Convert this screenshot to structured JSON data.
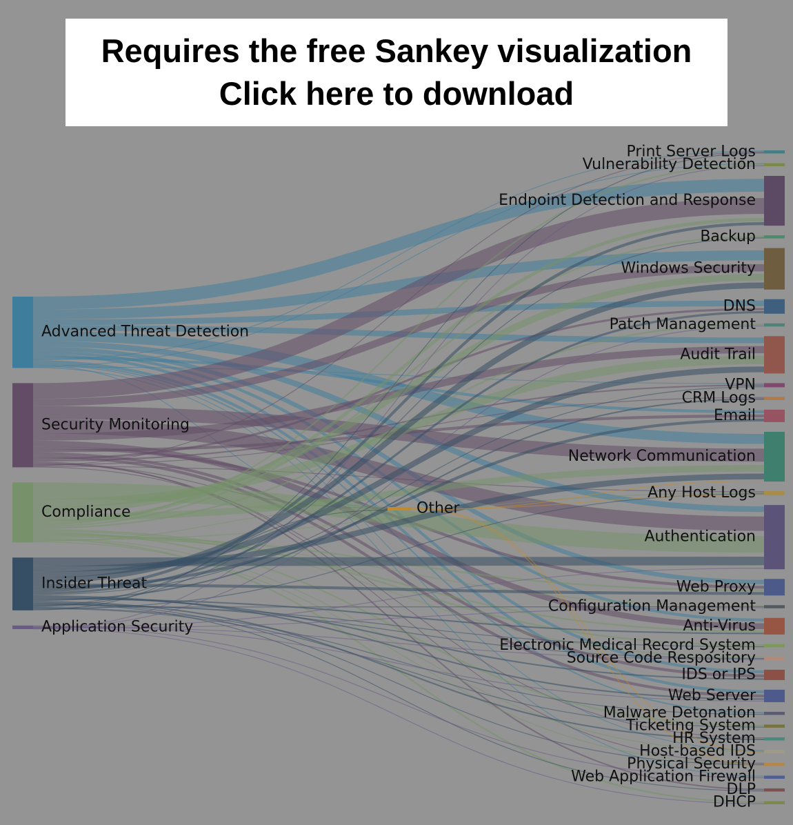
{
  "banner": {
    "line1": "Requires the free Sankey visualization",
    "line2": "Click here to download"
  },
  "chart_data": {
    "type": "sankey",
    "sources": [
      {
        "name": "Advanced Threat Detection",
        "color": "#3f7d9c",
        "value": 100
      },
      {
        "name": "Security Monitoring",
        "color": "#634c66",
        "value": 118
      },
      {
        "name": "Compliance",
        "color": "#77926a",
        "value": 84
      },
      {
        "name": "Insider Threat",
        "color": "#364f64",
        "value": 74
      },
      {
        "name": "Application Security",
        "color": "#6a5a86",
        "value": 5
      }
    ],
    "middle": [
      {
        "name": "Other",
        "color": "#c28a2e",
        "value": 4
      }
    ],
    "targets": [
      {
        "name": "Print Server Logs",
        "color": "#427f82",
        "value": 3
      },
      {
        "name": "Vulnerability Detection",
        "color": "#7b8c4a",
        "value": 3
      },
      {
        "name": "Endpoint Detection and Response",
        "color": "#5c4a64",
        "value": 48
      },
      {
        "name": "Backup",
        "color": "#4d8a6c",
        "value": 3
      },
      {
        "name": "Windows Security",
        "color": "#6e5d3e",
        "value": 40
      },
      {
        "name": "DNS",
        "color": "#3e5f7e",
        "value": 14
      },
      {
        "name": "Patch Management",
        "color": "#4f8377",
        "value": 3
      },
      {
        "name": "Audit Trail",
        "color": "#91574c",
        "value": 36
      },
      {
        "name": "VPN",
        "color": "#804a70",
        "value": 4
      },
      {
        "name": "CRM Logs",
        "color": "#b0794a",
        "value": 3
      },
      {
        "name": "Email",
        "color": "#975361",
        "value": 12
      },
      {
        "name": "Network Communication",
        "color": "#3f7f6e",
        "value": 48
      },
      {
        "name": "Any Host Logs",
        "color": "#a98c45",
        "value": 4
      },
      {
        "name": "Authentication",
        "color": "#5b5478",
        "value": 62
      },
      {
        "name": "Web Proxy",
        "color": "#4c5a8a",
        "value": 16
      },
      {
        "name": "Configuration Management",
        "color": "#4f5a61",
        "value": 3
      },
      {
        "name": "Anti-Virus",
        "color": "#975543",
        "value": 16
      },
      {
        "name": "Electronic Medical Record System",
        "color": "#7e9a58",
        "value": 3
      },
      {
        "name": "Source Code Respository",
        "color": "#b38a7a",
        "value": 3
      },
      {
        "name": "IDS or IPS",
        "color": "#8b5147",
        "value": 10
      },
      {
        "name": "Web Server",
        "color": "#4d5a8b",
        "value": 12
      },
      {
        "name": "Malware Detonation",
        "color": "#5a5a72",
        "value": 3
      },
      {
        "name": "Ticketing System",
        "color": "#76733e",
        "value": 3
      },
      {
        "name": "HR System",
        "color": "#4a8a7e",
        "value": 3
      },
      {
        "name": "Host-based IDS",
        "color": "#a09a84",
        "value": 3
      },
      {
        "name": "Physical Security",
        "color": "#b6874a",
        "value": 3
      },
      {
        "name": "Web Application Firewall",
        "color": "#4f5f96",
        "value": 3
      },
      {
        "name": "DLP",
        "color": "#7e4f50",
        "value": 3
      },
      {
        "name": "DHCP",
        "color": "#7b8a4c",
        "value": 3
      }
    ],
    "links": [
      {
        "source": "Advanced Threat Detection",
        "target": "Endpoint Detection and Response",
        "value": 18
      },
      {
        "source": "Advanced Threat Detection",
        "target": "Windows Security",
        "value": 14
      },
      {
        "source": "Advanced Threat Detection",
        "target": "DNS",
        "value": 8
      },
      {
        "source": "Advanced Threat Detection",
        "target": "Audit Trail",
        "value": 8
      },
      {
        "source": "Advanced Threat Detection",
        "target": "Network Communication",
        "value": 14
      },
      {
        "source": "Advanced Threat Detection",
        "target": "Authentication",
        "value": 8
      },
      {
        "source": "Advanced Threat Detection",
        "target": "Web Proxy",
        "value": 6
      },
      {
        "source": "Advanced Threat Detection",
        "target": "Anti-Virus",
        "value": 4
      },
      {
        "source": "Advanced Threat Detection",
        "target": "IDS or IPS",
        "value": 4
      },
      {
        "source": "Advanced Threat Detection",
        "target": "Email",
        "value": 4
      },
      {
        "source": "Advanced Threat Detection",
        "target": "Print Server Logs",
        "value": 1
      },
      {
        "source": "Advanced Threat Detection",
        "target": "Web Server",
        "value": 4
      },
      {
        "source": "Advanced Threat Detection",
        "target": "Malware Detonation",
        "value": 2
      },
      {
        "source": "Advanced Threat Detection",
        "target": "Host-based IDS",
        "value": 1
      },
      {
        "source": "Advanced Threat Detection",
        "target": "Other",
        "value": 1
      },
      {
        "source": "Advanced Threat Detection",
        "target": "Vulnerability Detection",
        "value": 1
      },
      {
        "source": "Advanced Threat Detection",
        "target": "VPN",
        "value": 1
      },
      {
        "source": "Advanced Threat Detection",
        "target": "Web Application Firewall",
        "value": 1
      },
      {
        "source": "Security Monitoring",
        "target": "Endpoint Detection and Response",
        "value": 22
      },
      {
        "source": "Security Monitoring",
        "target": "Windows Security",
        "value": 10
      },
      {
        "source": "Security Monitoring",
        "target": "Network Communication",
        "value": 18
      },
      {
        "source": "Security Monitoring",
        "target": "Authentication",
        "value": 20
      },
      {
        "source": "Security Monitoring",
        "target": "Audit Trail",
        "value": 10
      },
      {
        "source": "Security Monitoring",
        "target": "Anti-Virus",
        "value": 8
      },
      {
        "source": "Security Monitoring",
        "target": "Web Proxy",
        "value": 4
      },
      {
        "source": "Security Monitoring",
        "target": "Email",
        "value": 4
      },
      {
        "source": "Security Monitoring",
        "target": "IDS or IPS",
        "value": 4
      },
      {
        "source": "Security Monitoring",
        "target": "Web Server",
        "value": 4
      },
      {
        "source": "Security Monitoring",
        "target": "DNS",
        "value": 3
      },
      {
        "source": "Security Monitoring",
        "target": "VPN",
        "value": 2
      },
      {
        "source": "Security Monitoring",
        "target": "DLP",
        "value": 2
      },
      {
        "source": "Security Monitoring",
        "target": "Physical Security",
        "value": 1
      },
      {
        "source": "Security Monitoring",
        "target": "Other",
        "value": 1
      },
      {
        "source": "Security Monitoring",
        "target": "CRM Logs",
        "value": 1
      },
      {
        "source": "Security Monitoring",
        "target": "Print Server Logs",
        "value": 1
      },
      {
        "source": "Security Monitoring",
        "target": "Any Host Logs",
        "value": 1
      },
      {
        "source": "Security Monitoring",
        "target": "HR System",
        "value": 1
      },
      {
        "source": "Compliance",
        "target": "Authentication",
        "value": 20
      },
      {
        "source": "Compliance",
        "target": "Audit Trail",
        "value": 10
      },
      {
        "source": "Compliance",
        "target": "Windows Security",
        "value": 8
      },
      {
        "source": "Compliance",
        "target": "Network Communication",
        "value": 8
      },
      {
        "source": "Compliance",
        "target": "Endpoint Detection and Response",
        "value": 4
      },
      {
        "source": "Compliance",
        "target": "Vulnerability Detection",
        "value": 2
      },
      {
        "source": "Compliance",
        "target": "Backup",
        "value": 2
      },
      {
        "source": "Compliance",
        "target": "Patch Management",
        "value": 2
      },
      {
        "source": "Compliance",
        "target": "Electronic Medical Record System",
        "value": 2
      },
      {
        "source": "Compliance",
        "target": "Source Code Respository",
        "value": 1
      },
      {
        "source": "Compliance",
        "target": "Ticketing System",
        "value": 2
      },
      {
        "source": "Compliance",
        "target": "Anti-Virus",
        "value": 2
      },
      {
        "source": "Compliance",
        "target": "Web Proxy",
        "value": 2
      },
      {
        "source": "Compliance",
        "target": "Configuration Management",
        "value": 1
      },
      {
        "source": "Compliance",
        "target": "Host-based IDS",
        "value": 1
      },
      {
        "source": "Compliance",
        "target": "DHCP",
        "value": 2
      },
      {
        "source": "Compliance",
        "target": "Any Host Logs",
        "value": 1
      },
      {
        "source": "Compliance",
        "target": "Other",
        "value": 1
      },
      {
        "source": "Compliance",
        "target": "Physical Security",
        "value": 1
      },
      {
        "source": "Insider Threat",
        "target": "Authentication",
        "value": 12
      },
      {
        "source": "Insider Threat",
        "target": "Network Communication",
        "value": 8
      },
      {
        "source": "Insider Threat",
        "target": "Audit Trail",
        "value": 8
      },
      {
        "source": "Insider Threat",
        "target": "Windows Security",
        "value": 8
      },
      {
        "source": "Insider Threat",
        "target": "Web Proxy",
        "value": 4
      },
      {
        "source": "Insider Threat",
        "target": "Email",
        "value": 4
      },
      {
        "source": "Insider Threat",
        "target": "Endpoint Detection and Response",
        "value": 4
      },
      {
        "source": "Insider Threat",
        "target": "DNS",
        "value": 3
      },
      {
        "source": "Insider Threat",
        "target": "VPN",
        "value": 1
      },
      {
        "source": "Insider Threat",
        "target": "Web Server",
        "value": 2
      },
      {
        "source": "Insider Threat",
        "target": "IDS or IPS",
        "value": 2
      },
      {
        "source": "Insider Threat",
        "target": "Anti-Virus",
        "value": 2
      },
      {
        "source": "Insider Threat",
        "target": "CRM Logs",
        "value": 2
      },
      {
        "source": "Insider Threat",
        "target": "HR System",
        "value": 2
      },
      {
        "source": "Insider Threat",
        "target": "Physical Security",
        "value": 1
      },
      {
        "source": "Insider Threat",
        "target": "DLP",
        "value": 1
      },
      {
        "source": "Insider Threat",
        "target": "Source Code Respository",
        "value": 1
      },
      {
        "source": "Insider Threat",
        "target": "Electronic Medical Record System",
        "value": 1
      },
      {
        "source": "Insider Threat",
        "target": "Print Server Logs",
        "value": 1
      },
      {
        "source": "Insider Threat",
        "target": "Backup",
        "value": 1
      },
      {
        "source": "Insider Threat",
        "target": "Configuration Management",
        "value": 1
      },
      {
        "source": "Insider Threat",
        "target": "Malware Detonation",
        "value": 1
      },
      {
        "source": "Insider Threat",
        "target": "Ticketing System",
        "value": 1
      },
      {
        "source": "Insider Threat",
        "target": "Any Host Logs",
        "value": 1
      },
      {
        "source": "Insider Threat",
        "target": "Other",
        "value": 1
      },
      {
        "source": "Application Security",
        "target": "Web Server",
        "value": 2
      },
      {
        "source": "Application Security",
        "target": "Web Application Firewall",
        "value": 2
      },
      {
        "source": "Application Security",
        "target": "Source Code Respository",
        "value": 1
      },
      {
        "source": "Application Security",
        "target": "Authentication",
        "value": 2
      },
      {
        "source": "Application Security",
        "target": "Patch Management",
        "value": 1
      },
      {
        "source": "Application Security",
        "target": "Configuration Management",
        "value": 1
      },
      {
        "source": "Application Security",
        "target": "DHCP",
        "value": 1
      },
      {
        "source": "Application Security",
        "target": "Vulnerability Detection",
        "value": 1
      },
      {
        "source": "Application Security",
        "target": "Backup",
        "value": 0
      },
      {
        "source": "Other",
        "target": "Host-based IDS",
        "value": 1
      },
      {
        "source": "Other",
        "target": "Physical Security",
        "value": 1
      },
      {
        "source": "Other",
        "target": "Any Host Logs",
        "value": 1
      },
      {
        "source": "Other",
        "target": "Network Communication",
        "value": 1
      }
    ]
  }
}
